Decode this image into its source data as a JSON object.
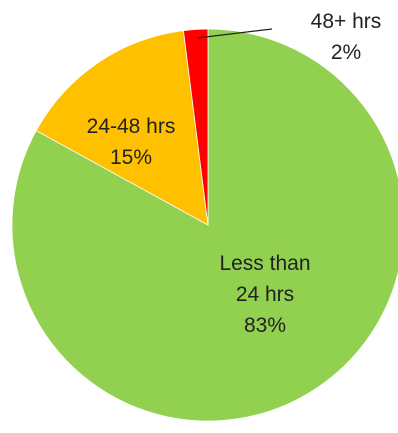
{
  "chart_data": {
    "type": "pie",
    "title": "",
    "slices": [
      {
        "label_lines": [
          "Less than",
          "24 hrs"
        ],
        "label": "Less than 24 hrs",
        "value": 83,
        "value_label": "83%",
        "color": "#92d050"
      },
      {
        "label_lines": [
          "24-48 hrs"
        ],
        "label": "24-48 hrs",
        "value": 15,
        "value_label": "15%",
        "color": "#ffc000"
      },
      {
        "label_lines": [
          "48+ hrs"
        ],
        "label": "48+ hrs",
        "value": 2,
        "value_label": "2%",
        "color": "#ff0000"
      }
    ],
    "start_angle_deg": 0,
    "direction": "clockwise",
    "legend": "none",
    "data_labels": "category-and-percent"
  }
}
